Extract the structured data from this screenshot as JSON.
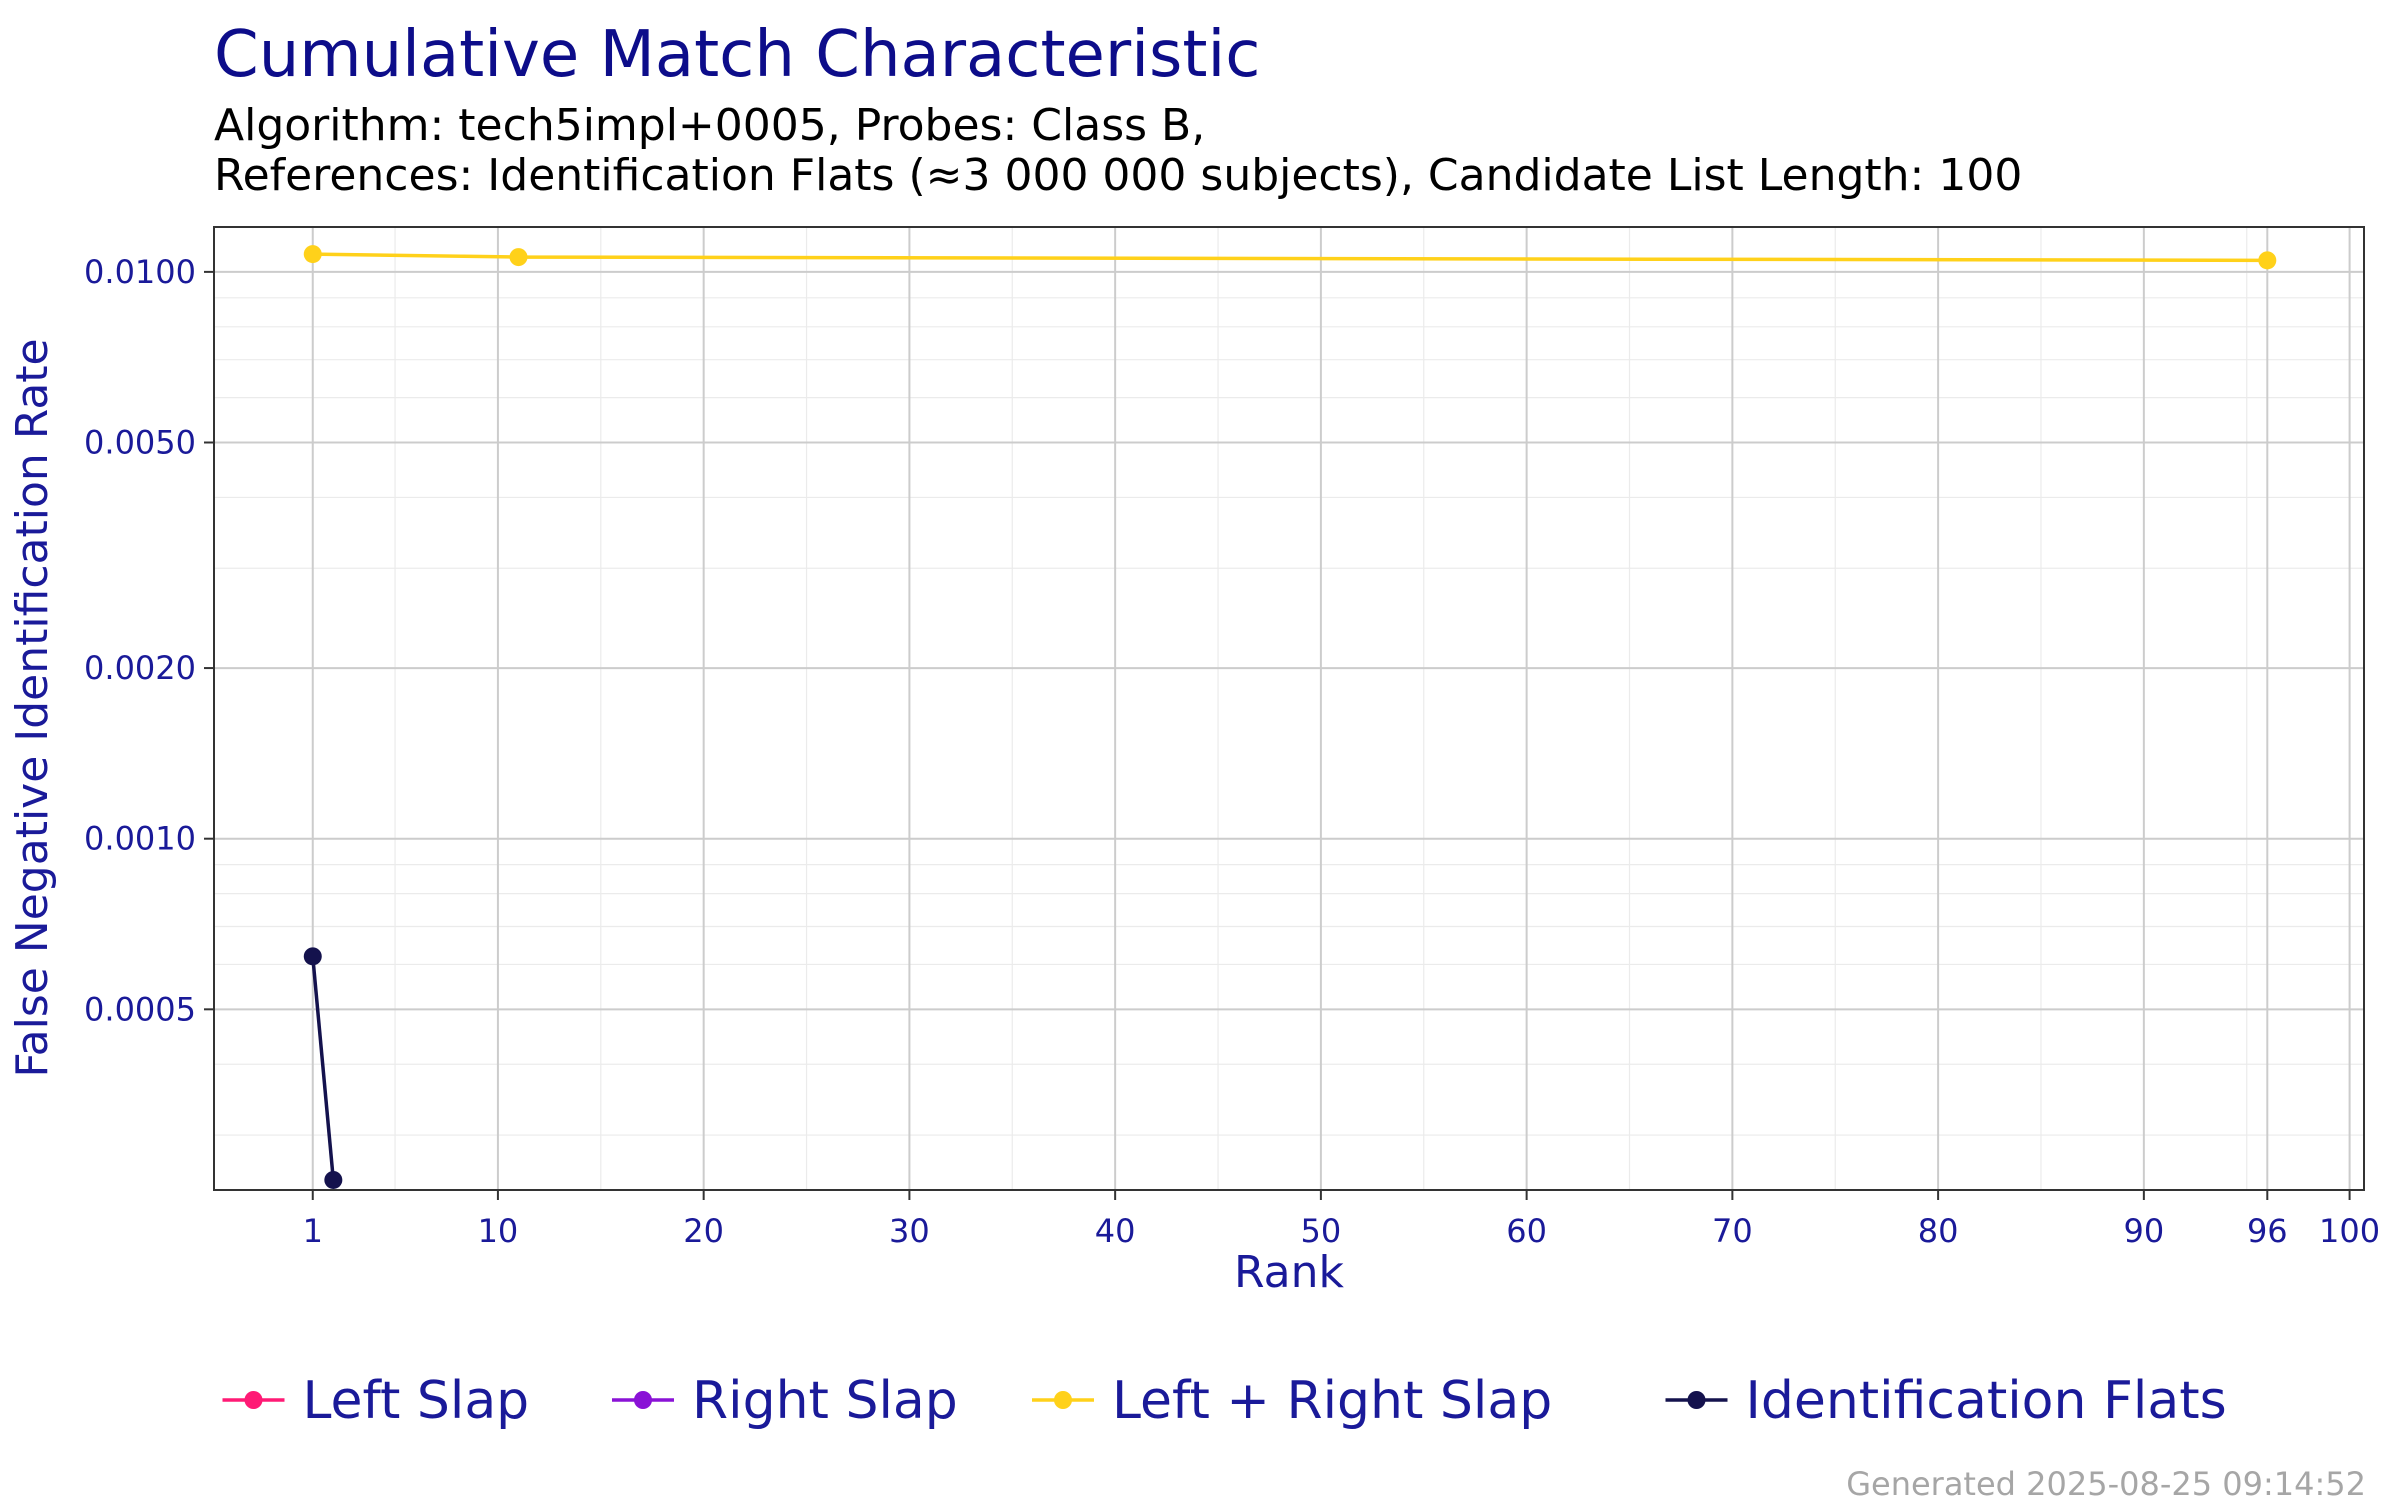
{
  "chart_data": {
    "type": "line",
    "title": "Cumulative Match Characteristic",
    "subtitle_lines": [
      "Algorithm: tech5impl+0005, Probes: Class B,",
      "References: Identification Flats (≈3 000 000 subjects), Candidate List Length: 100"
    ],
    "xlabel": "Rank",
    "ylabel": "False Negative Identification Rate",
    "x_scale": "linear",
    "y_scale": "log",
    "xlim": [
      -3.8,
      100.7
    ],
    "ylim": [
      0.00024,
      0.012
    ],
    "x_ticks": [
      1,
      10,
      20,
      30,
      40,
      50,
      60,
      70,
      80,
      90,
      96,
      100
    ],
    "x_minor_ticks": [
      5,
      15,
      25,
      35,
      45,
      55,
      65,
      75,
      85,
      95
    ],
    "y_ticks": [
      0.0005,
      0.001,
      0.002,
      0.005,
      0.01
    ],
    "y_tick_labels": [
      "0.0005",
      "0.0010",
      "0.0020",
      "0.0050",
      "0.0100"
    ],
    "y_minor_ticks": [
      0.0003,
      0.0004,
      0.0006,
      0.0007,
      0.0008,
      0.0009,
      0.003,
      0.004,
      0.006,
      0.007,
      0.008,
      0.009
    ],
    "grid": true,
    "legend_position": "bottom",
    "series": [
      {
        "name": "Left Slap",
        "color": "#ff1a75",
        "points": []
      },
      {
        "name": "Right Slap",
        "color": "#8a12d6",
        "points": []
      },
      {
        "name": "Left + Right Slap",
        "color": "#ffd11a",
        "points": [
          [
            1,
            0.01075
          ],
          [
            11,
            0.01062
          ],
          [
            96,
            0.01048
          ]
        ]
      },
      {
        "name": "Identification Flats",
        "color": "#14124d",
        "points": [
          [
            1,
            0.00062
          ],
          [
            2,
            0.00025
          ]
        ]
      }
    ],
    "caption": "Generated 2025-08-25 09:14:52"
  }
}
